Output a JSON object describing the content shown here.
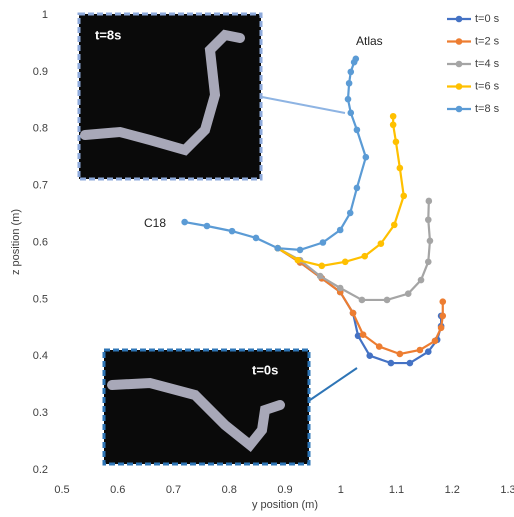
{
  "chart_data": {
    "type": "line",
    "xlabel": "y position (m)",
    "ylabel": "z position (m)",
    "xlim": [
      0.5,
      1.3
    ],
    "xticks": [
      0.5,
      0.6,
      0.7,
      0.8,
      0.9,
      1,
      1.1,
      1.2,
      1.3
    ],
    "ylim": [
      0.2,
      1
    ],
    "yticks": [
      0.2,
      0.3,
      0.4,
      0.5,
      0.6,
      0.7,
      0.8,
      0.9,
      1
    ],
    "grid": false,
    "legend": "upper right",
    "annotations": [
      "Atlas",
      "C18",
      "t=8s",
      "t=0s"
    ],
    "series": [
      {
        "name": "t=0 s",
        "color": "#4472c4",
        "x": [
          0.887,
          0.927,
          0.966,
          0.999,
          1.022,
          1.031,
          1.052,
          1.09,
          1.124,
          1.157,
          1.173,
          1.18,
          1.18
        ],
        "values": [
          0.59,
          0.565,
          0.537,
          0.513,
          0.476,
          0.436,
          0.401,
          0.388,
          0.388,
          0.408,
          0.429,
          0.453,
          0.471
        ]
      },
      {
        "name": "t=2 s",
        "color": "#ed7d31",
        "x": [
          0.887,
          0.927,
          0.966,
          0.999,
          1.022,
          1.04,
          1.069,
          1.106,
          1.142,
          1.169,
          1.18,
          1.183,
          1.183
        ],
        "values": [
          0.59,
          0.565,
          0.537,
          0.513,
          0.476,
          0.438,
          0.417,
          0.404,
          0.411,
          0.427,
          0.45,
          0.471,
          0.496
        ]
      },
      {
        "name": "t=4 s",
        "color": "#a5a5a5",
        "x": [
          0.887,
          0.927,
          0.963,
          0.999,
          1.038,
          1.083,
          1.121,
          1.144,
          1.157,
          1.16,
          1.157,
          1.158
        ],
        "values": [
          0.59,
          0.569,
          0.541,
          0.52,
          0.499,
          0.499,
          0.51,
          0.534,
          0.566,
          0.603,
          0.64,
          0.673
        ]
      },
      {
        "name": "t=6 s",
        "color": "#ffc000",
        "x": [
          0.887,
          0.923,
          0.966,
          1.008,
          1.043,
          1.072,
          1.096,
          1.113,
          1.106,
          1.099,
          1.094,
          1.094
        ],
        "values": [
          0.59,
          0.569,
          0.559,
          0.566,
          0.576,
          0.598,
          0.631,
          0.682,
          0.731,
          0.777,
          0.807,
          0.822
        ]
      },
      {
        "name": "t=8 s",
        "color": "#5b9bd5",
        "x": [
          0.72,
          0.76,
          0.805,
          0.848,
          0.887,
          0.927,
          0.968,
          0.999,
          1.017,
          1.029,
          1.045,
          1.029,
          1.018,
          1.013,
          1.015,
          1.018,
          1.024,
          1.027
        ],
        "values": [
          0.636,
          0.629,
          0.62,
          0.608,
          0.59,
          0.587,
          0.6,
          0.622,
          0.652,
          0.696,
          0.75,
          0.798,
          0.828,
          0.852,
          0.88,
          0.9,
          0.917,
          0.923
        ]
      }
    ]
  }
}
